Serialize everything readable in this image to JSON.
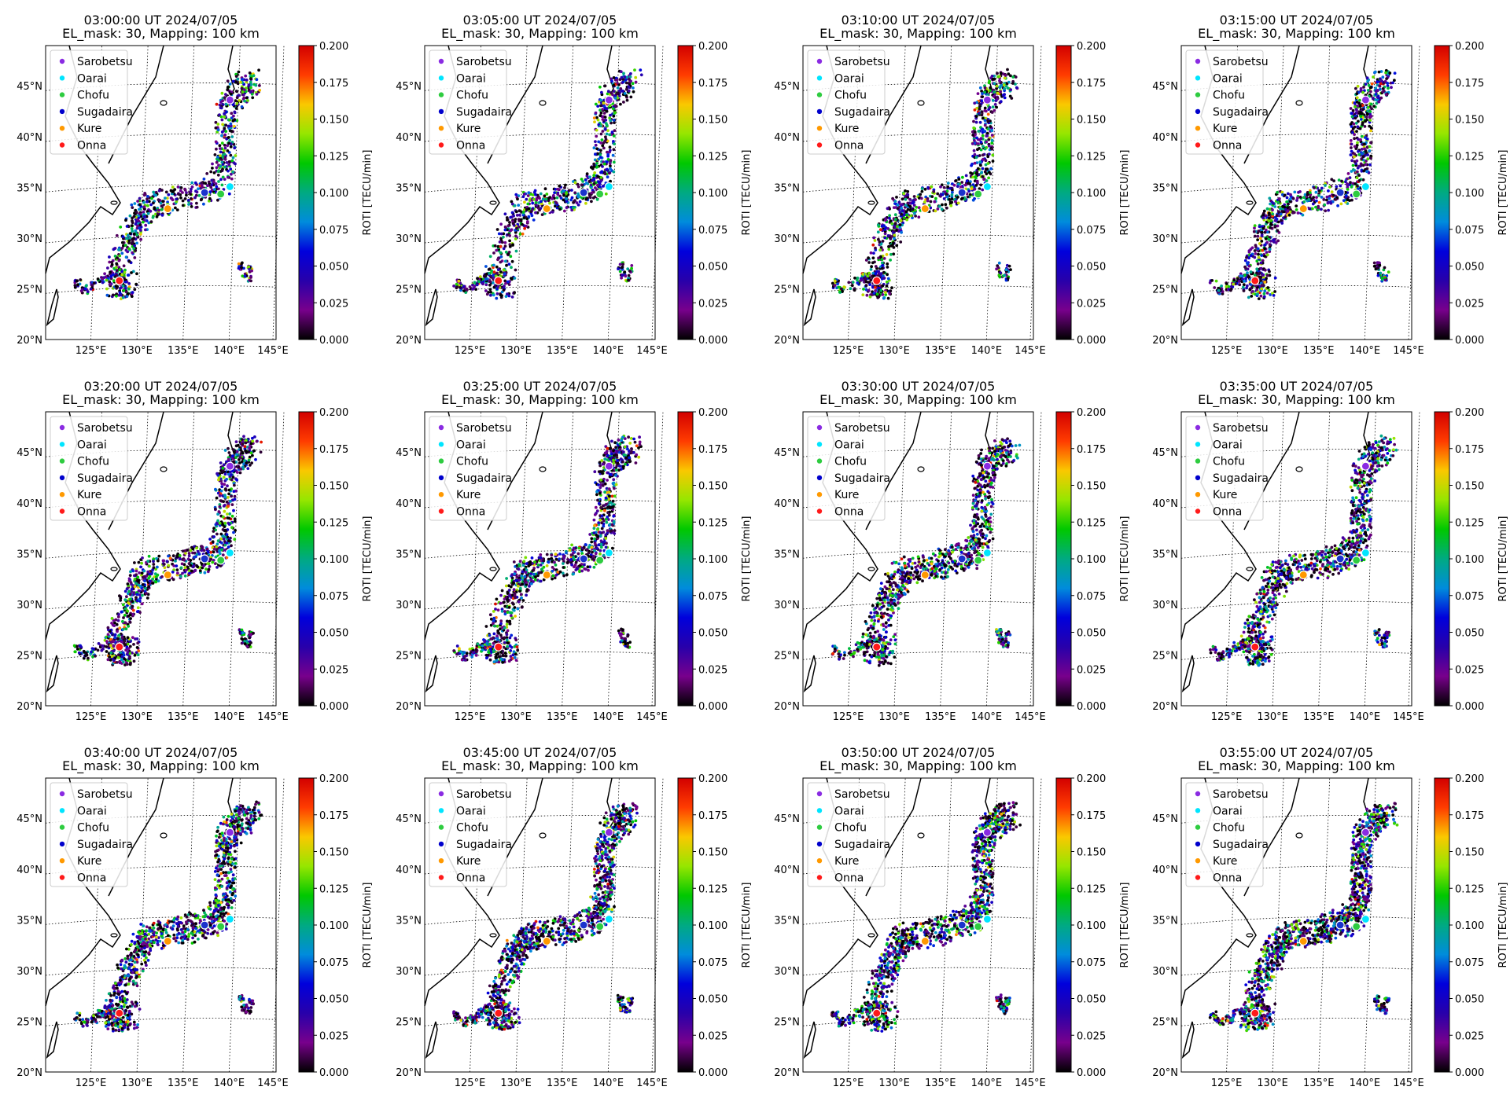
{
  "figure": {
    "el_mask_line": "EL_mask: 30, Mapping: 100 km",
    "colorbar": {
      "label": "ROTI [TECU/min]",
      "ticks": [
        "0.000",
        "0.025",
        "0.050",
        "0.075",
        "0.100",
        "0.125",
        "0.150",
        "0.175",
        "0.200"
      ],
      "vmin": 0.0,
      "vmax": 0.2,
      "colormap": "nipy_spectral"
    },
    "lat_ticks": [
      "20°N",
      "25°N",
      "30°N",
      "35°N",
      "40°N",
      "45°N"
    ],
    "lon_ticks": [
      "125°E",
      "130°E",
      "135°E",
      "140°E",
      "145°E"
    ],
    "legend": [
      {
        "name": "Sarobetsu",
        "color": "#8a2be2"
      },
      {
        "name": "Oarai",
        "color": "#00e5ff"
      },
      {
        "name": "Chofu",
        "color": "#2ecc40"
      },
      {
        "name": "Sugadaira",
        "color": "#0000cc"
      },
      {
        "name": "Kure",
        "color": "#ff9900"
      },
      {
        "name": "Onna",
        "color": "#ff1a1a"
      }
    ],
    "panels": [
      {
        "title": "03:00:00 UT 2024/07/05"
      },
      {
        "title": "03:05:00 UT 2024/07/05"
      },
      {
        "title": "03:10:00 UT 2024/07/05"
      },
      {
        "title": "03:15:00 UT 2024/07/05"
      },
      {
        "title": "03:20:00 UT 2024/07/05"
      },
      {
        "title": "03:25:00 UT 2024/07/05"
      },
      {
        "title": "03:30:00 UT 2024/07/05"
      },
      {
        "title": "03:35:00 UT 2024/07/05"
      },
      {
        "title": "03:40:00 UT 2024/07/05"
      },
      {
        "title": "03:45:00 UT 2024/07/05"
      },
      {
        "title": "03:50:00 UT 2024/07/05"
      },
      {
        "title": "03:55:00 UT 2024/07/05"
      }
    ]
  }
}
